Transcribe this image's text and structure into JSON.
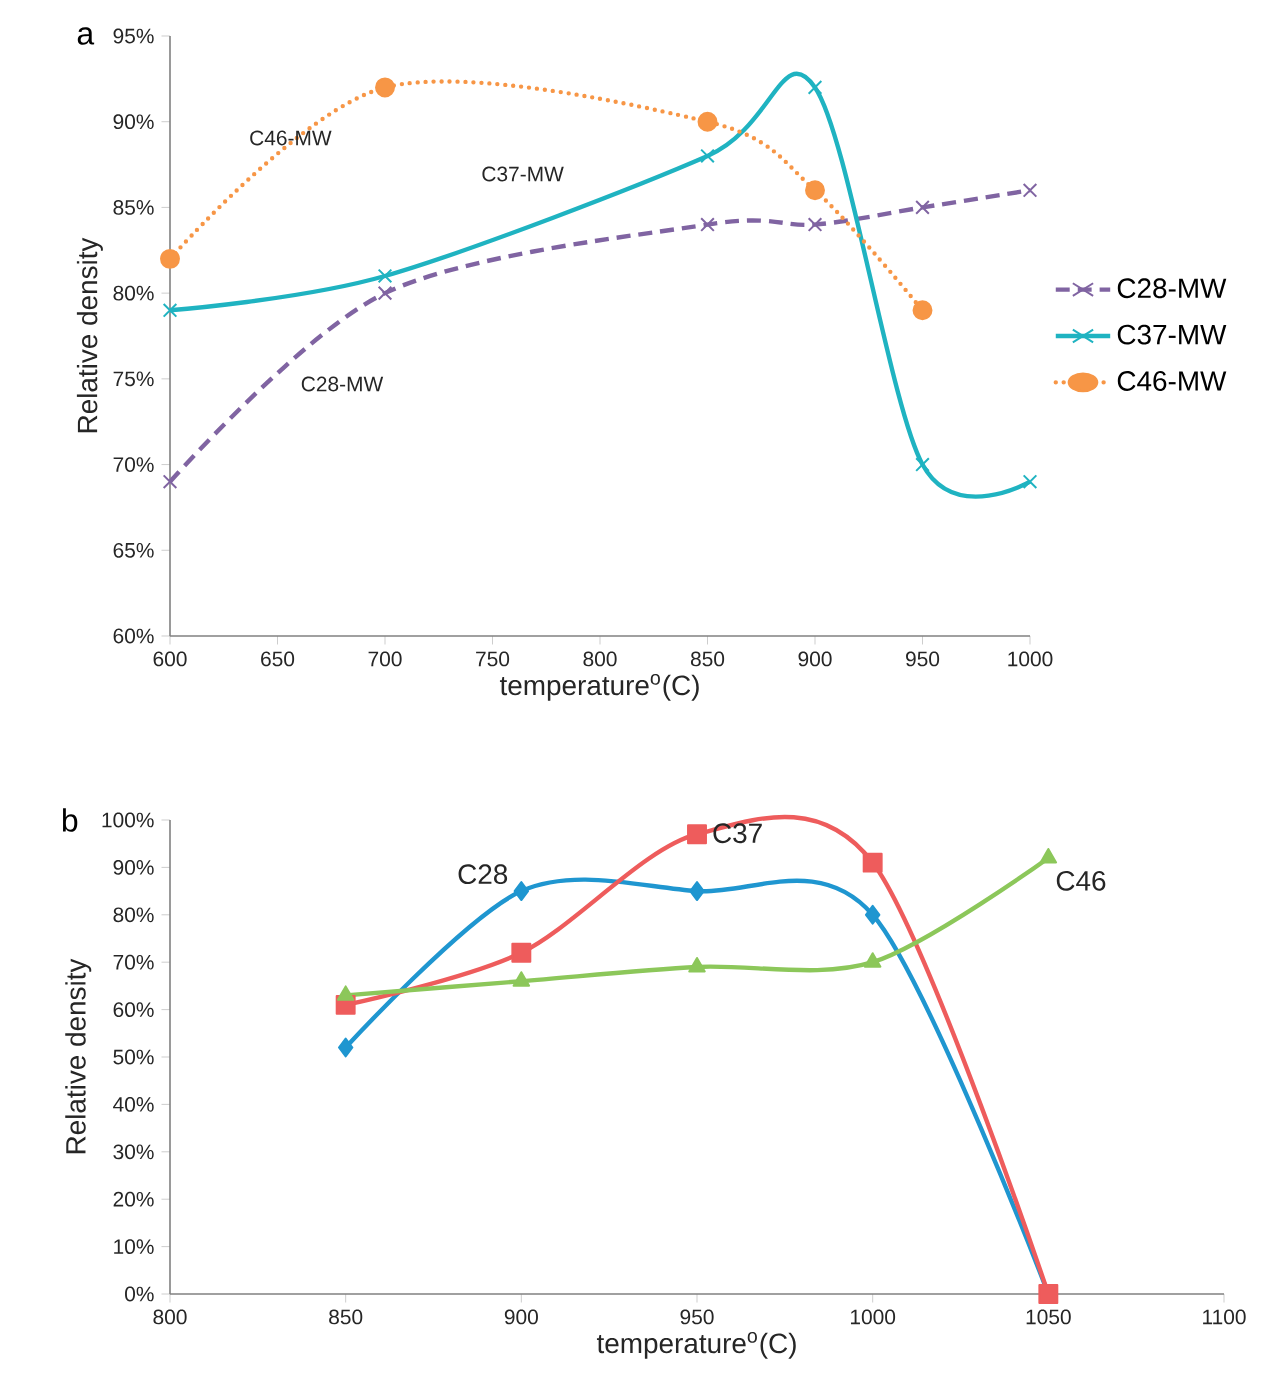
{
  "chart_data": [
    {
      "type": "line",
      "title": "a",
      "xlabel": "temperature$^{o}$(C)",
      "ylabel": "Relative density",
      "x": [
        600,
        700,
        850,
        900,
        950,
        1000
      ],
      "series": [
        {
          "name": "C28-MW",
          "color": "#8064a2",
          "marker": "cross",
          "line_style": "dashed",
          "values": [
            69,
            80,
            84,
            84,
            85,
            86
          ]
        },
        {
          "name": "C37-MW",
          "color": "#1fb3c1",
          "marker": "cross",
          "line_style": "solid",
          "values": [
            79,
            81,
            88,
            92,
            70,
            69
          ]
        },
        {
          "name": "C46-MW",
          "color": "#f79646",
          "marker": "circle",
          "line_style": "dotted",
          "values": [
            82,
            92,
            90,
            86,
            79,
            null
          ]
        }
      ],
      "xlim": [
        600,
        1000
      ],
      "xticks": [
        600,
        650,
        700,
        750,
        800,
        850,
        900,
        950,
        1000
      ],
      "ylim": [
        60,
        95
      ],
      "yticks": [
        {
          "value": 60,
          "label": "60%"
        },
        {
          "value": 65,
          "label": "65%"
        },
        {
          "value": 70,
          "label": "70%"
        },
        {
          "value": 75,
          "label": "75%"
        },
        {
          "value": 80,
          "label": "80%"
        },
        {
          "value": 85,
          "label": "85%"
        },
        {
          "value": 90,
          "label": "90%"
        },
        {
          "value": 95,
          "label": "95%"
        }
      ],
      "annotations": [
        "C46-MW",
        "C37-MW",
        "C28-MW"
      ],
      "legend": "right",
      "grid": false
    },
    {
      "type": "line",
      "title": "b",
      "xlabel": "temperature$^{o}$(C)",
      "ylabel": "Relative density",
      "x": [
        850,
        900,
        950,
        1000,
        1050
      ],
      "series": [
        {
          "name": "C28",
          "color": "#1f96d0",
          "marker": "diamond",
          "line_style": "solid",
          "values": [
            52,
            85,
            85,
            80,
            0
          ]
        },
        {
          "name": "C37",
          "color": "#ee5c5c",
          "marker": "square",
          "line_style": "solid",
          "values": [
            61,
            72,
            97,
            91,
            0
          ]
        },
        {
          "name": "C46",
          "color": "#8cc75a",
          "marker": "triangle",
          "line_style": "solid",
          "values": [
            63,
            66,
            69,
            70,
            92
          ]
        }
      ],
      "xlim": [
        800,
        1100
      ],
      "xticks": [
        800,
        850,
        900,
        950,
        1000,
        1050,
        1100
      ],
      "ylim": [
        0,
        100
      ],
      "yticks": [
        {
          "value": 0,
          "label": "0%"
        },
        {
          "value": 10,
          "label": "10%"
        },
        {
          "value": 20,
          "label": "20%"
        },
        {
          "value": 30,
          "label": "30%"
        },
        {
          "value": 40,
          "label": "40%"
        },
        {
          "value": 50,
          "label": "50%"
        },
        {
          "value": 60,
          "label": "60%"
        },
        {
          "value": 70,
          "label": "70%"
        },
        {
          "value": 80,
          "label": "80%"
        },
        {
          "value": 90,
          "label": "90%"
        },
        {
          "value": 100,
          "label": "100%"
        }
      ],
      "legend": false,
      "grid": false
    }
  ]
}
